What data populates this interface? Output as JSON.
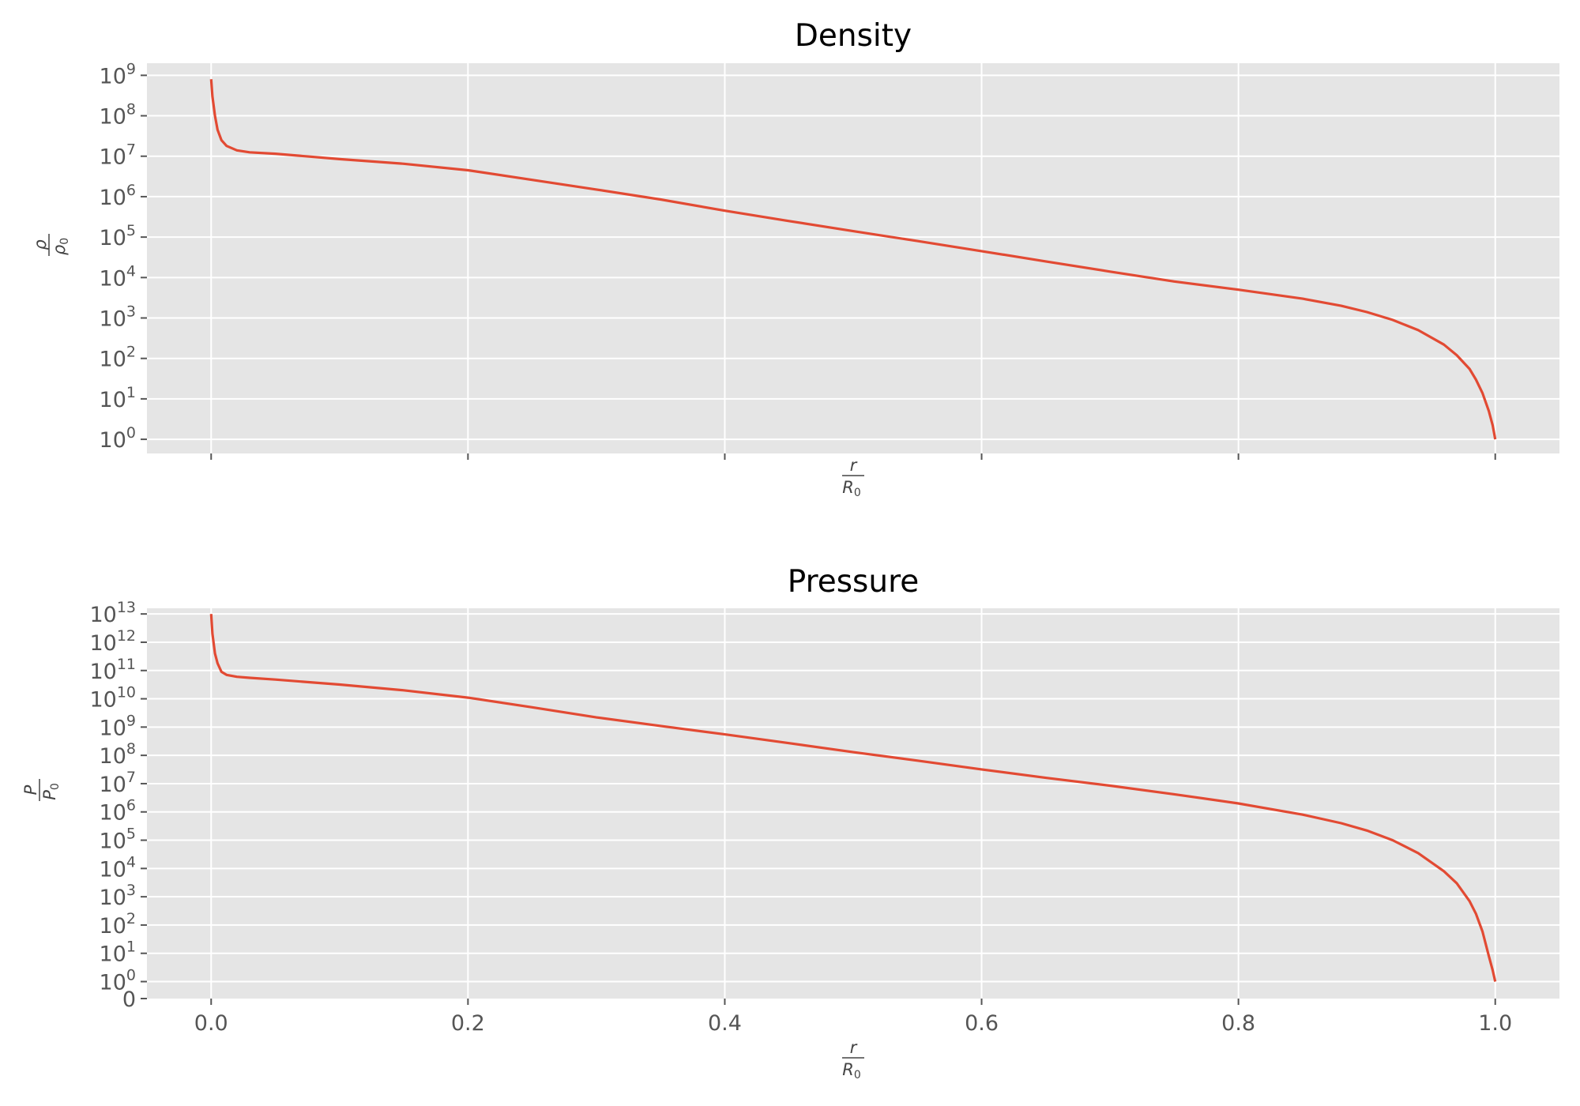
{
  "chart_data": [
    {
      "type": "line",
      "title": "Density",
      "yscale": "log",
      "ylabel": {
        "num": "ρ",
        "den": "ρ",
        "den_sub": "0"
      },
      "xlabel": {
        "num": "r",
        "den": "R",
        "den_sub": "0"
      },
      "xlim": [
        -0.05,
        1.05
      ],
      "ylim_exp": [
        -0.35,
        9.3
      ],
      "x_ticks": [
        0.0,
        0.2,
        0.4,
        0.6,
        0.8,
        1.0
      ],
      "x_tick_labels_visible": false,
      "y_ticks": [
        {
          "exp": 0,
          "base": "10",
          "sup": "0"
        },
        {
          "exp": 1,
          "base": "10",
          "sup": "1"
        },
        {
          "exp": 2,
          "base": "10",
          "sup": "2"
        },
        {
          "exp": 3,
          "base": "10",
          "sup": "3"
        },
        {
          "exp": 4,
          "base": "10",
          "sup": "4"
        },
        {
          "exp": 5,
          "base": "10",
          "sup": "5"
        },
        {
          "exp": 6,
          "base": "10",
          "sup": "6"
        },
        {
          "exp": 7,
          "base": "10",
          "sup": "7"
        },
        {
          "exp": 8,
          "base": "10",
          "sup": "8"
        },
        {
          "exp": 9,
          "base": "10",
          "sup": "9"
        }
      ],
      "grid": true,
      "series": [
        {
          "color": "#E24A33",
          "x": [
            0.0,
            0.001,
            0.003,
            0.005,
            0.008,
            0.012,
            0.02,
            0.03,
            0.05,
            0.1,
            0.15,
            0.2,
            0.25,
            0.3,
            0.35,
            0.4,
            0.45,
            0.5,
            0.55,
            0.6,
            0.65,
            0.7,
            0.75,
            0.8,
            0.85,
            0.88,
            0.9,
            0.92,
            0.94,
            0.96,
            0.97,
            0.98,
            0.985,
            0.99,
            0.995,
            0.998,
            1.0
          ],
          "y": [
            800000000.0,
            300000000.0,
            100000000.0,
            45000000.0,
            25000000.0,
            18000000.0,
            14000000.0,
            12500000.0,
            11500000.0,
            8500000.0,
            6500000.0,
            4500000.0,
            2600000.0,
            1500000.0,
            850000.0,
            450000.0,
            250000.0,
            140000.0,
            80000.0,
            45000.0,
            25000.0,
            14000.0,
            8000.0,
            5000.0,
            3000.0,
            2000.0,
            1400.0,
            900,
            500,
            220,
            120,
            55,
            30,
            14,
            5,
            2.2,
            1.0
          ]
        }
      ]
    },
    {
      "type": "line",
      "title": "Pressure",
      "yscale": "log",
      "ylabel": {
        "num": "P",
        "den": "P",
        "den_sub": "0"
      },
      "xlabel": {
        "num": "r",
        "den": "R",
        "den_sub": "0"
      },
      "xlim": [
        -0.05,
        1.05
      ],
      "ylim_exp": [
        -0.6,
        13.2
      ],
      "x_ticks": [
        0.0,
        0.2,
        0.4,
        0.6,
        0.8,
        1.0
      ],
      "x_tick_labels": [
        "0.0",
        "0.2",
        "0.4",
        "0.6",
        "0.8",
        "1.0"
      ],
      "x_tick_labels_visible": true,
      "y_extra_tick": {
        "label": "0"
      },
      "y_ticks": [
        {
          "exp": 0,
          "base": "10",
          "sup": "0"
        },
        {
          "exp": 1,
          "base": "10",
          "sup": "1"
        },
        {
          "exp": 2,
          "base": "10",
          "sup": "2"
        },
        {
          "exp": 3,
          "base": "10",
          "sup": "3"
        },
        {
          "exp": 4,
          "base": "10",
          "sup": "4"
        },
        {
          "exp": 5,
          "base": "10",
          "sup": "5"
        },
        {
          "exp": 6,
          "base": "10",
          "sup": "6"
        },
        {
          "exp": 7,
          "base": "10",
          "sup": "7"
        },
        {
          "exp": 8,
          "base": "10",
          "sup": "8"
        },
        {
          "exp": 9,
          "base": "10",
          "sup": "9"
        },
        {
          "exp": 10,
          "base": "10",
          "sup": "10"
        },
        {
          "exp": 11,
          "base": "10",
          "sup": "11"
        },
        {
          "exp": 12,
          "base": "10",
          "sup": "12"
        },
        {
          "exp": 13,
          "base": "10",
          "sup": "13"
        }
      ],
      "grid": true,
      "series": [
        {
          "color": "#E24A33",
          "x": [
            0.0,
            0.001,
            0.003,
            0.005,
            0.008,
            0.012,
            0.02,
            0.03,
            0.05,
            0.1,
            0.15,
            0.2,
            0.25,
            0.3,
            0.35,
            0.4,
            0.45,
            0.5,
            0.55,
            0.6,
            0.65,
            0.7,
            0.75,
            0.8,
            0.85,
            0.88,
            0.9,
            0.92,
            0.94,
            0.96,
            0.97,
            0.98,
            0.985,
            0.99,
            0.995,
            0.998,
            1.0
          ],
          "y": [
            10000000000000.0,
            2000000000000.0,
            400000000000.0,
            180000000000.0,
            90000000000.0,
            70000000000.0,
            60000000000.0,
            55000000000.0,
            48000000000.0,
            32000000000.0,
            20000000000.0,
            11000000000.0,
            5000000000.0,
            2200000000.0,
            1100000000.0,
            550000000.0,
            270000000.0,
            130000000.0,
            65000000.0,
            32000000.0,
            16000000.0,
            8500000.0,
            4200000.0,
            2000000.0,
            800000.0,
            400000.0,
            220000.0,
            100000.0,
            35000.0,
            8000.0,
            3000.0,
            700,
            250,
            60,
            8,
            2.5,
            1.0
          ]
        }
      ]
    }
  ]
}
